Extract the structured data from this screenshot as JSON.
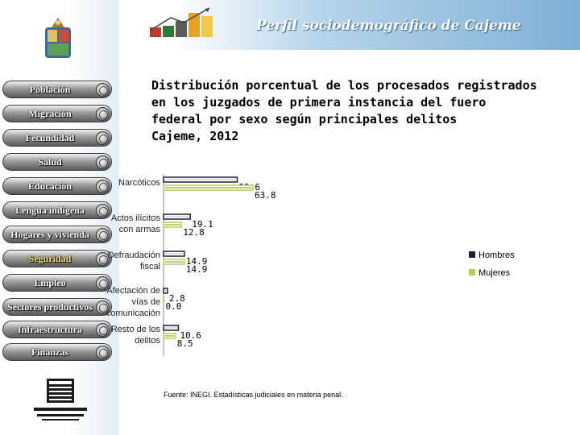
{
  "header": {
    "title": "Perfil sociodemográfico de Cajeme"
  },
  "sidebar": {
    "items": [
      {
        "label": "Población"
      },
      {
        "label": "Migración"
      },
      {
        "label": "Fecundidad"
      },
      {
        "label": "Salud"
      },
      {
        "label": "Educación"
      },
      {
        "label": "Lengua indígena"
      },
      {
        "label": "Hogares y vivienda"
      },
      {
        "label": "Seguridad",
        "active": true
      },
      {
        "label": "Empleo"
      },
      {
        "label": "Sectores productivos"
      },
      {
        "label": "Infraestructura"
      },
      {
        "label": "Finanzas"
      }
    ]
  },
  "chart_data": {
    "type": "bar",
    "orientation": "horizontal",
    "title_lines": [
      "Distribución porcentual de los procesados registrados",
      "en los juzgados de primera instancia del fuero",
      "federal por sexo según principales delitos",
      "Cajeme, 2012"
    ],
    "categories": [
      [
        "Narcóticos"
      ],
      [
        "Actos ilícitos",
        "con armas"
      ],
      [
        "Defraudación",
        "fiscal"
      ],
      [
        "Afectación de",
        "vías de",
        "comunicación"
      ],
      [
        "Resto de los",
        "delitos"
      ]
    ],
    "series": [
      {
        "name": "Hombres",
        "values": [
          52.6,
          19.1,
          14.9,
          2.8,
          10.6
        ],
        "color": "#1f1f3a"
      },
      {
        "name": "Mujeres",
        "values": [
          63.8,
          12.8,
          14.9,
          0.0,
          8.5
        ],
        "color": "#b5cc5a"
      }
    ],
    "legend_position": "right",
    "grid": false
  },
  "source": "Fuente: INEGI. Estadísticas judiciales en materia penal.",
  "colors": {
    "accent_blue": "#7fb0d6",
    "hombres": "#1f1f3a",
    "mujeres": "#b5cc5a"
  }
}
